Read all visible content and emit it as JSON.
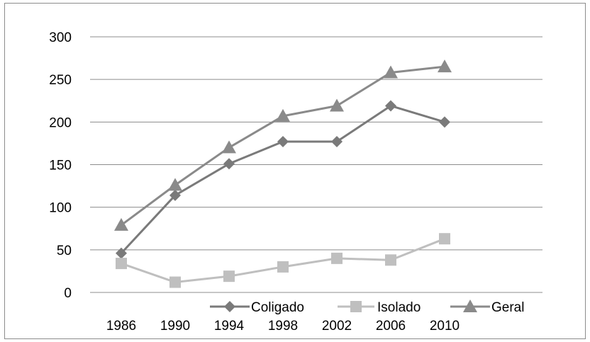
{
  "chart_data": {
    "type": "line",
    "categories": [
      "1986",
      "1990",
      "1994",
      "1998",
      "2002",
      "2006",
      "2010"
    ],
    "series": [
      {
        "name": "Coligado",
        "values": [
          46,
          114,
          151,
          177,
          177,
          219,
          200
        ],
        "color": "#7a7a7a",
        "marker": "diamond"
      },
      {
        "name": "Isolado",
        "values": [
          34,
          12,
          19,
          30,
          40,
          38,
          63
        ],
        "color": "#bfbfbf",
        "marker": "square"
      },
      {
        "name": "Geral",
        "values": [
          79,
          126,
          170,
          207,
          219,
          258,
          265
        ],
        "color": "#8a8a8a",
        "marker": "triangle"
      }
    ],
    "yticks": [
      0,
      50,
      100,
      150,
      200,
      250,
      300
    ],
    "ylim": [
      0,
      300
    ],
    "grid": true,
    "legend_position": "bottom"
  }
}
